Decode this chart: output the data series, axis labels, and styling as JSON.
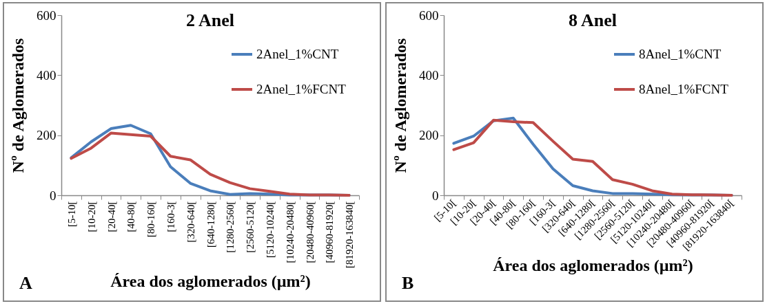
{
  "chart_data": [
    {
      "type": "line",
      "title": "2 Anel",
      "xlabel": "Área dos aglomerados (µm²)",
      "ylabel": "Nº de Aglomerados",
      "annotations": [
        "A"
      ],
      "categories": [
        "[5-10[",
        "[10-20[",
        "[20-40[",
        "[40-80[",
        "[80-160[",
        "[160-3[",
        "[320-640[",
        "[640-1280[",
        "[1280-2560[",
        "[2560-5120[",
        "[5120-10240[",
        "[10240-20480[",
        "[20480-40960[",
        "[40960-81920[",
        "[81920-163840["
      ],
      "series": [
        {
          "name": "2Anel_1%CNT",
          "color": "#4a7ebb",
          "values": [
            125,
            178,
            222,
            233,
            205,
            95,
            40,
            15,
            3,
            6,
            4,
            1,
            1,
            1,
            0
          ]
        },
        {
          "name": "2Anel_1%FCNT",
          "color": "#be4b48",
          "values": [
            123,
            157,
            207,
            202,
            197,
            130,
            118,
            70,
            42,
            22,
            13,
            4,
            1,
            1,
            0
          ]
        }
      ],
      "ylim": [
        0,
        600
      ],
      "yticks": [
        0,
        200,
        400,
        600
      ],
      "grid": false,
      "legend": "top right"
    },
    {
      "type": "line",
      "title": "8 Anel",
      "xlabel": "Área dos aglomerados (µm²)",
      "ylabel": "Nº de Aglomerados",
      "annotations": [
        "B"
      ],
      "categories": [
        "[5-10[",
        "[10-20[",
        "[20-40[",
        "[40-80[",
        "[80-160[",
        "[160-3[",
        "[320-640[",
        "[640-1280[",
        "[1280-2560[",
        "[2560-5120[",
        "[5120-10240[",
        "[10240-20480[",
        "[20480-40960[",
        "[40960-81920[",
        "[81920-163840["
      ],
      "series": [
        {
          "name": "8Anel_1%CNT",
          "color": "#4a7ebb",
          "values": [
            173,
            197,
            248,
            257,
            170,
            88,
            32,
            15,
            6,
            6,
            4,
            2,
            1,
            1,
            0
          ]
        },
        {
          "name": "8Anel_1%FCNT",
          "color": "#be4b48",
          "values": [
            152,
            175,
            250,
            245,
            242,
            180,
            120,
            113,
            52,
            37,
            15,
            4,
            2,
            1,
            0
          ]
        }
      ],
      "ylim": [
        0,
        600
      ],
      "yticks": [
        0,
        200,
        400,
        600
      ],
      "grid": false,
      "legend": "top right"
    }
  ]
}
